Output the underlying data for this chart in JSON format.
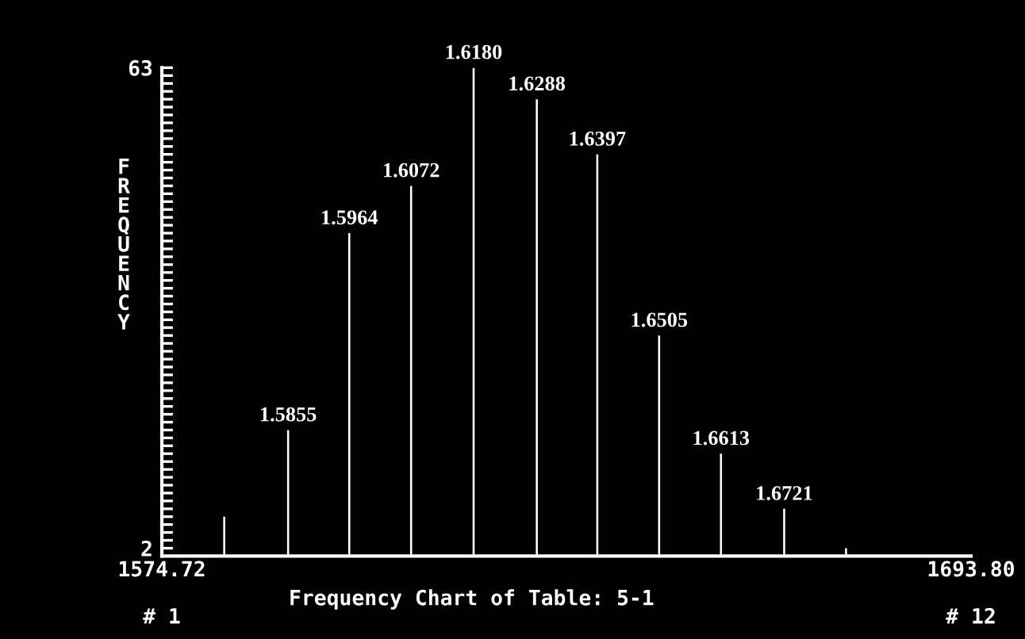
{
  "chart_data": {
    "type": "bar",
    "title": "Frequency Chart of Table: 5-1",
    "ylabel": "FREQUENCY",
    "x": [
      1583.9,
      1593.3,
      1602.3,
      1611.4,
      1620.6,
      1629.9,
      1638.8,
      1647.9,
      1657.0,
      1666.3,
      1675.4
    ],
    "series": [
      {
        "color": "#ffffff",
        "values": [
          6,
          17,
          42,
          48,
          63,
          59,
          52,
          29,
          14,
          7,
          2
        ]
      }
    ],
    "xlim": [
      1574.72,
      1693.8
    ],
    "xticks": [
      {
        "value": 1574.72,
        "label": "1574.72"
      },
      {
        "value": 1693.8,
        "label": "1693.80"
      }
    ],
    "ylim": [
      1,
      63
    ],
    "yticks": [
      2,
      {
        "value": 3,
        "label": null
      },
      {
        "value": 4,
        "label": null
      },
      {
        "value": 5,
        "label": null
      },
      {
        "value": 6,
        "label": null
      },
      {
        "value": 7,
        "label": null
      },
      {
        "value": 8,
        "label": null
      },
      {
        "value": 9,
        "label": null
      },
      {
        "value": 10,
        "label": null
      },
      {
        "value": 11,
        "label": null
      },
      {
        "value": 12,
        "label": null
      },
      {
        "value": 13,
        "label": null
      },
      {
        "value": 14,
        "label": null
      },
      {
        "value": 15,
        "label": null
      },
      {
        "value": 16,
        "label": null
      },
      {
        "value": 17,
        "label": null
      },
      {
        "value": 18,
        "label": null
      },
      {
        "value": 19,
        "label": null
      },
      {
        "value": 20,
        "label": null
      },
      {
        "value": 21,
        "label": null
      },
      {
        "value": 22,
        "label": null
      },
      {
        "value": 23,
        "label": null
      },
      {
        "value": 24,
        "label": null
      },
      {
        "value": 25,
        "label": null
      },
      {
        "value": 26,
        "label": null
      },
      {
        "value": 27,
        "label": null
      },
      {
        "value": 28,
        "label": null
      },
      {
        "value": 29,
        "label": null
      },
      {
        "value": 30,
        "label": null
      },
      {
        "value": 31,
        "label": null
      },
      {
        "value": 32,
        "label": null
      },
      {
        "value": 33,
        "label": null
      },
      {
        "value": 34,
        "label": null
      },
      {
        "value": 35,
        "label": null
      },
      {
        "value": 36,
        "label": null
      },
      {
        "value": 37,
        "label": null
      },
      {
        "value": 38,
        "label": null
      },
      {
        "value": 39,
        "label": null
      },
      {
        "value": 40,
        "label": null
      },
      {
        "value": 41,
        "label": null
      },
      {
        "value": 42,
        "label": null
      },
      {
        "value": 43,
        "label": null
      },
      {
        "value": 44,
        "label": null
      },
      {
        "value": 45,
        "label": null
      },
      {
        "value": 46,
        "label": null
      },
      {
        "value": 47,
        "label": null
      },
      {
        "value": 48,
        "label": null
      },
      {
        "value": 49,
        "label": null
      },
      {
        "value": 50,
        "label": null
      },
      {
        "value": 51,
        "label": null
      },
      {
        "value": 52,
        "label": null
      },
      {
        "value": 53,
        "label": null
      },
      {
        "value": 54,
        "label": null
      },
      {
        "value": 55,
        "label": null
      },
      {
        "value": 56,
        "label": null
      },
      {
        "value": 57,
        "label": null
      },
      {
        "value": 58,
        "label": null
      },
      {
        "value": 59,
        "label": null
      },
      {
        "value": 60,
        "label": null
      },
      {
        "value": 61,
        "label": null
      },
      {
        "value": 62,
        "label": null
      },
      63
    ],
    "annotations": [
      "# 1",
      "# 12",
      {
        "text": "1.5855",
        "x": 1593.3,
        "y": 17
      },
      {
        "text": "1.5964",
        "x": 1602.3,
        "y": 42
      },
      {
        "text": "1.6072",
        "x": 1611.4,
        "y": 48
      },
      {
        "text": "1.6180",
        "x": 1620.6,
        "y": 63
      },
      {
        "text": "1.6288",
        "x": 1629.9,
        "y": 59
      },
      {
        "text": "1.6397",
        "x": 1638.8,
        "y": 52
      },
      {
        "text": "1.6505",
        "x": 1647.9,
        "y": 29
      },
      {
        "text": "1.6613",
        "x": 1657.0,
        "y": 14
      },
      {
        "text": "1.6721",
        "x": 1666.3,
        "y": 7
      }
    ]
  }
}
